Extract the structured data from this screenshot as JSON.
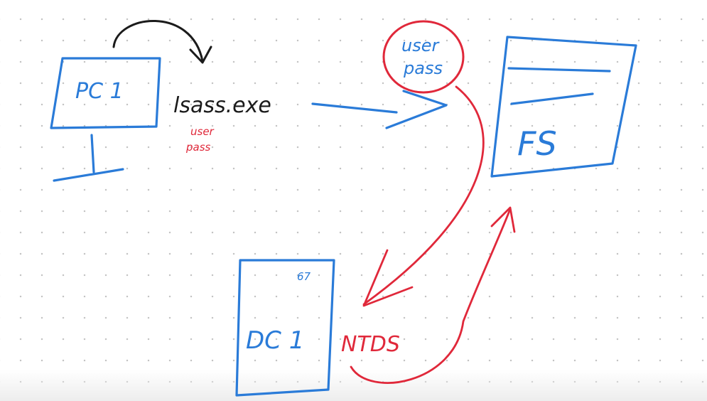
{
  "labels": {
    "pc": "PC 1",
    "process": "lsass.exe",
    "process_creds": [
      "user",
      "pass"
    ],
    "circle_creds": [
      "user",
      "pass"
    ],
    "fileserver": "FS",
    "dc": "DC 1",
    "dc_corner": "67",
    "database": "NTDS"
  },
  "colors": {
    "blue": "#2a7bd8",
    "red": "#e0283a",
    "black": "#1b1b1b"
  }
}
